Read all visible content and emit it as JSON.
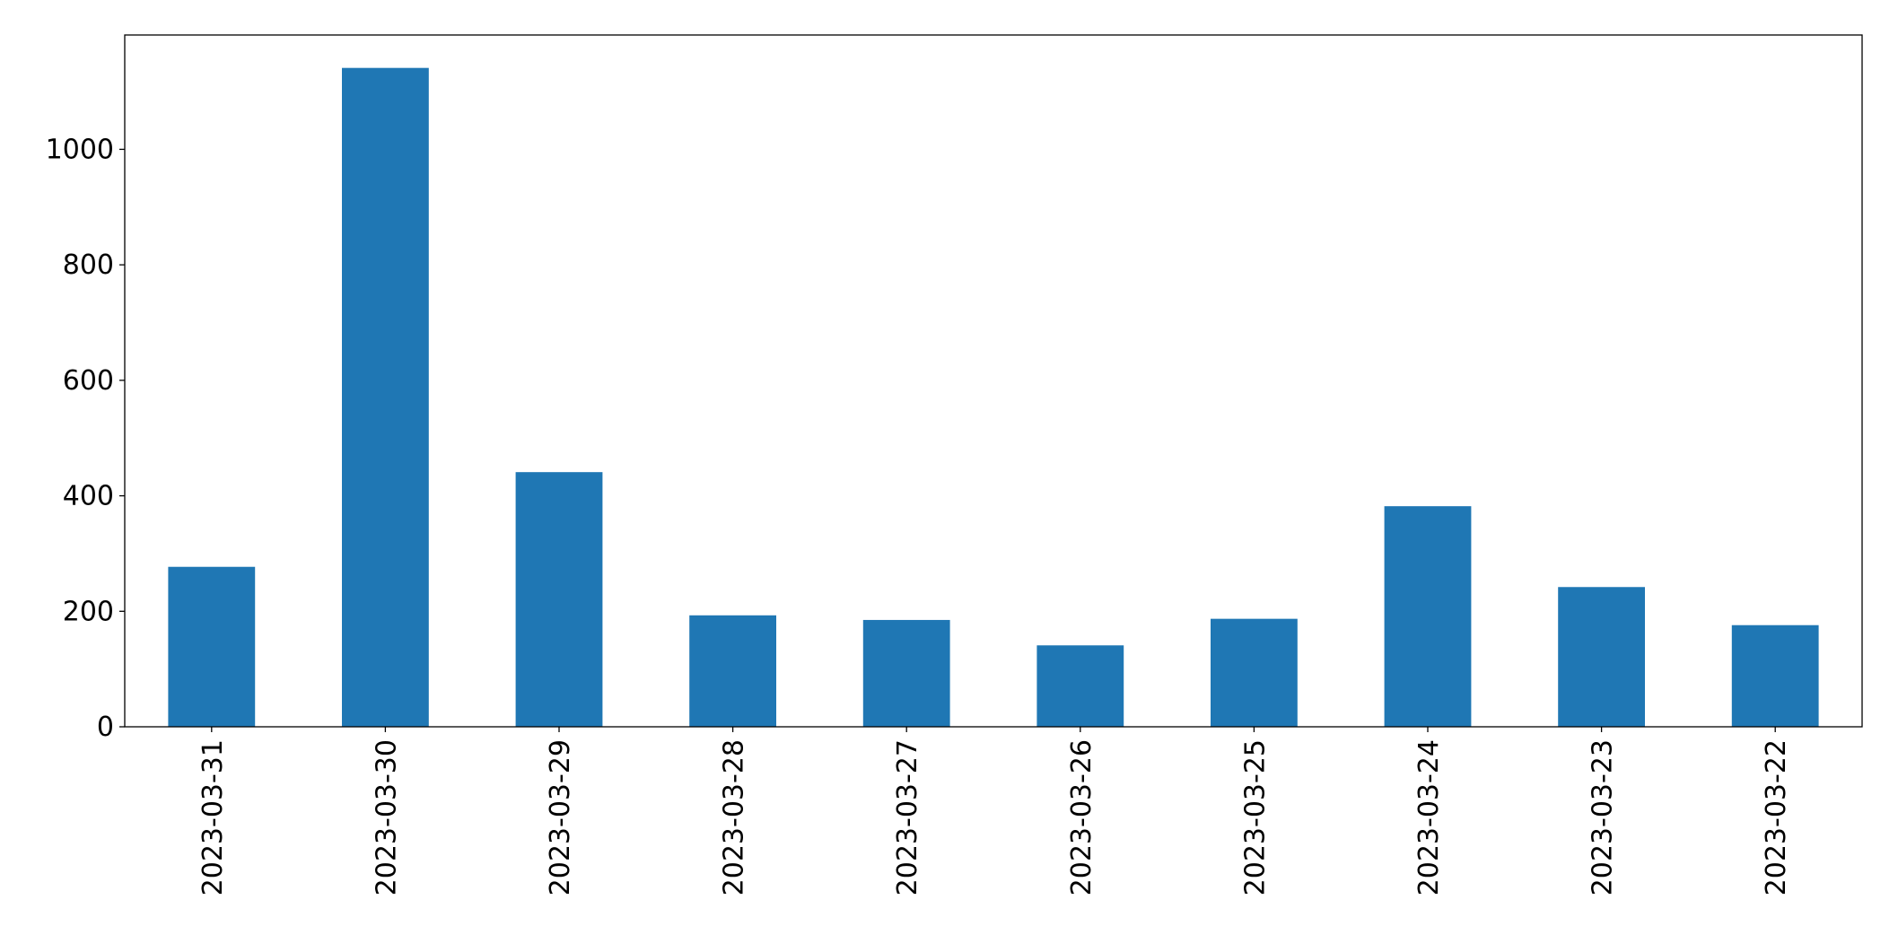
{
  "chart_data": {
    "type": "bar",
    "categories": [
      "2023-03-31",
      "2023-03-30",
      "2023-03-29",
      "2023-03-28",
      "2023-03-27",
      "2023-03-26",
      "2023-03-25",
      "2023-03-24",
      "2023-03-23",
      "2023-03-22"
    ],
    "values": [
      277,
      1141,
      441,
      193,
      185,
      141,
      187,
      382,
      242,
      176
    ],
    "color": "#1f77b4",
    "ylim": [
      0,
      1198
    ],
    "yticks": [
      0,
      200,
      400,
      600,
      800,
      1000
    ],
    "grid": false
  }
}
